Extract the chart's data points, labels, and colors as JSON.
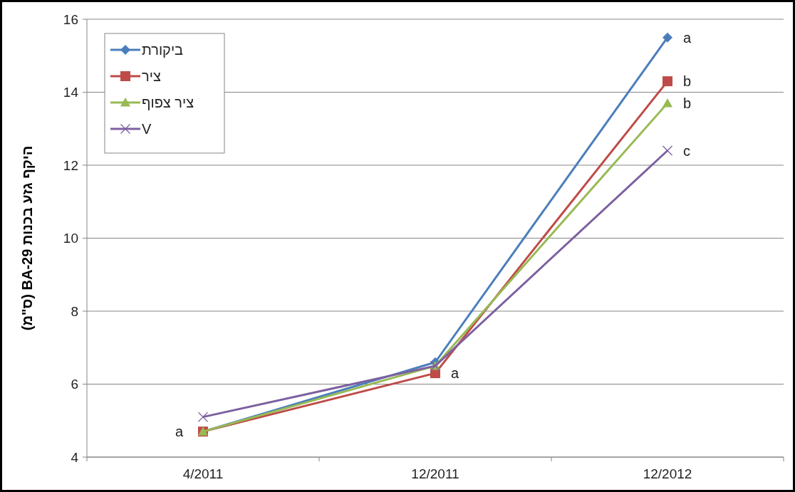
{
  "chart_data": {
    "type": "line",
    "ylabel": "היקף גזע בכנות BA-29  (ס\"מ)",
    "categories": [
      "4/2011",
      "12/2011",
      "12/2012"
    ],
    "series": [
      {
        "name": "ביקורת",
        "color": "#4a7ebb",
        "marker": "diamond",
        "values": [
          4.7,
          6.6,
          15.5
        ]
      },
      {
        "name": "ציר",
        "color": "#be4b48",
        "marker": "square",
        "values": [
          4.7,
          6.3,
          14.3
        ]
      },
      {
        "name": "ציר צפוף",
        "color": "#98b954",
        "marker": "triangle",
        "values": [
          4.7,
          6.5,
          13.7
        ]
      },
      {
        "name": "V",
        "color": "#7d60a0",
        "marker": "cross",
        "values": [
          5.1,
          6.5,
          12.4
        ]
      }
    ],
    "ylim": [
      4,
      16
    ],
    "yticks": [
      4,
      6,
      8,
      10,
      12,
      14,
      16
    ],
    "grid": "y",
    "legend": "top left",
    "annotations": [
      {
        "text": "a",
        "x": "4/2011",
        "y": 4.7
      },
      {
        "text": "a",
        "x": "12/2011",
        "y": 6.3
      },
      {
        "text": "a",
        "x": "12/2012",
        "y": 15.5
      },
      {
        "text": "b",
        "x": "12/2012",
        "y": 14.3
      },
      {
        "text": "b",
        "x": "12/2012",
        "y": 13.7
      },
      {
        "text": "c",
        "x": "12/2012",
        "y": 12.4
      }
    ]
  }
}
